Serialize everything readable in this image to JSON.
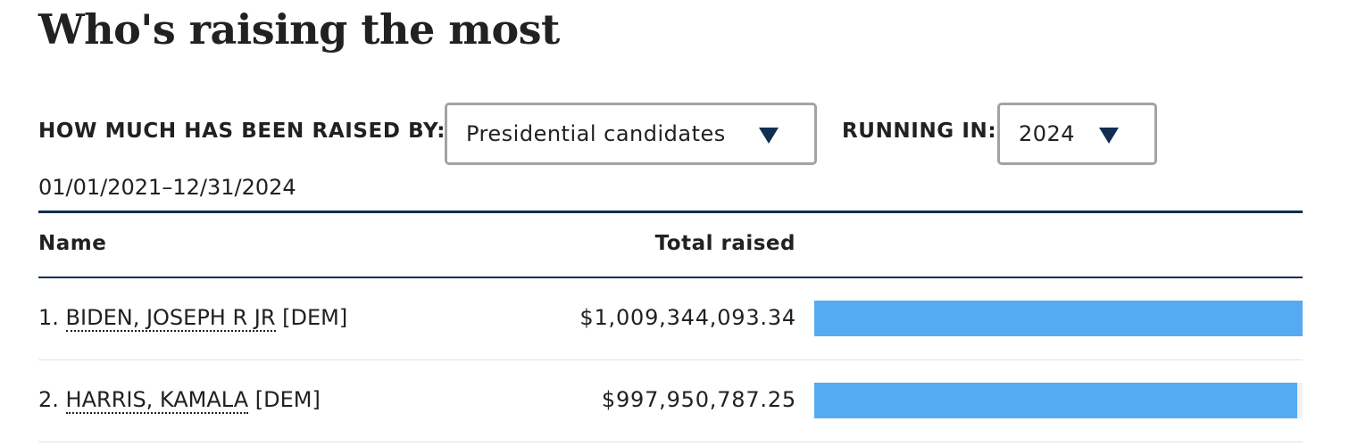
{
  "title": "Who's raising the most",
  "filters": {
    "raised_by_label": "HOW MUCH HAS BEEN RAISED BY:",
    "raised_by_value": "Presidential candidates",
    "running_in_label": "RUNNING IN:",
    "running_in_value": "2024"
  },
  "date_range": "01/01/2021–12/31/2024",
  "table": {
    "columns": [
      "Name",
      "Total raised"
    ],
    "rows": [
      {
        "rank": "1.",
        "name": "BIDEN, JOSEPH R JR",
        "party": "[DEM]",
        "total": "$1,009,344,093.34",
        "fraction": 1.0
      },
      {
        "rank": "2.",
        "name": "HARRIS, KAMALA",
        "party": "[DEM]",
        "total": "$997,950,787.25",
        "fraction": 0.9887
      }
    ]
  },
  "colors": {
    "bar": "#56aaf1",
    "navy": "#112e51",
    "track": "#f1f1f1"
  },
  "icons": {
    "dropdown": "caret-down-icon"
  }
}
